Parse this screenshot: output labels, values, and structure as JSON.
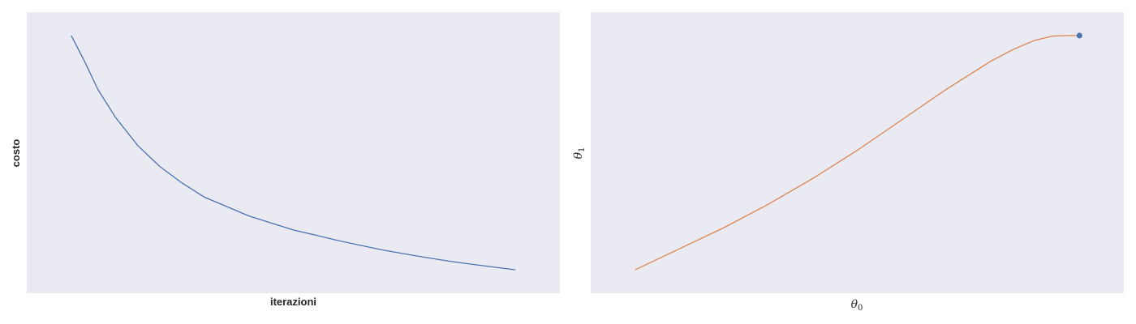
{
  "chart_data": [
    {
      "type": "line",
      "xlabel": "iterazioni",
      "ylabel": "costo",
      "grid": false,
      "xlim": [
        -0.1,
        1.1
      ],
      "ylim": [
        -0.1,
        1.1
      ],
      "series": [
        {
          "color": "#4c72b0",
          "x": [
            0.0,
            0.03,
            0.06,
            0.1,
            0.15,
            0.2,
            0.25,
            0.3,
            0.35,
            0.4,
            0.45,
            0.5,
            0.55,
            0.6,
            0.65,
            0.7,
            0.75,
            0.8,
            0.85,
            0.9,
            0.95,
            1.0
          ],
          "y": [
            1.0,
            0.89,
            0.77,
            0.65,
            0.53,
            0.44,
            0.37,
            0.31,
            0.27,
            0.23,
            0.2,
            0.17,
            0.148,
            0.125,
            0.105,
            0.085,
            0.068,
            0.052,
            0.037,
            0.024,
            0.012,
            0.0
          ]
        }
      ]
    },
    {
      "type": "line",
      "xlabel": "θ",
      "xlabel_sub": "0",
      "ylabel": "θ",
      "ylabel_sub": "1",
      "grid": false,
      "xlim": [
        -0.1,
        1.1
      ],
      "ylim": [
        -0.1,
        1.1
      ],
      "series": [
        {
          "color": "#dd8452",
          "x": [
            0.0,
            0.1,
            0.2,
            0.3,
            0.4,
            0.5,
            0.6,
            0.7,
            0.8,
            0.85,
            0.9,
            0.94,
            0.97,
            1.0
          ],
          "y": [
            0.0,
            0.09,
            0.18,
            0.28,
            0.39,
            0.51,
            0.64,
            0.77,
            0.89,
            0.94,
            0.98,
            0.998,
            1.0,
            1.0
          ]
        }
      ],
      "markers": [
        {
          "x": 1.0,
          "y": 1.0,
          "color": "#4c72b0"
        }
      ]
    }
  ]
}
